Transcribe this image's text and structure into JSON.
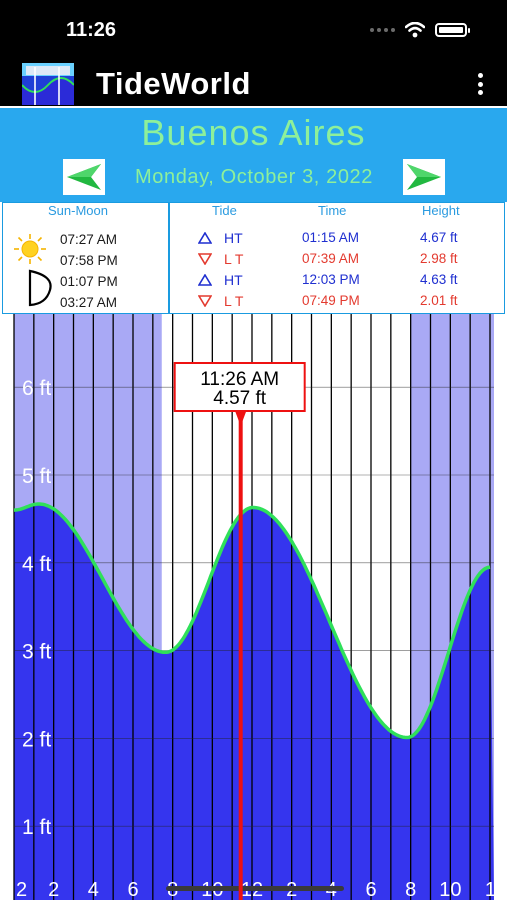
{
  "status_bar": {
    "time": "11:26"
  },
  "app": {
    "title": "TideWorld"
  },
  "location": {
    "city": "Buenos Aires",
    "date": "Monday, October 3, 2022"
  },
  "sun_moon": {
    "header": "Sun-Moon",
    "sunrise": "07:27 AM",
    "sunset": "07:58 PM",
    "moonrise": "01:07 PM",
    "moonset": "03:27 AM"
  },
  "tide_table": {
    "headers": {
      "tide": "Tide",
      "time": "Time",
      "height": "Height"
    },
    "rows": [
      {
        "type": "HT",
        "time": "01:15 AM",
        "height": "4.67 ft",
        "kind": "high"
      },
      {
        "type": "L T",
        "time": "07:39 AM",
        "height": "2.98 ft",
        "kind": "low"
      },
      {
        "type": "HT",
        "time": "12:03 PM",
        "height": "4.63 ft",
        "kind": "high"
      },
      {
        "type": "L T",
        "time": "07:49 PM",
        "height": "2.01 ft",
        "kind": "low"
      }
    ]
  },
  "cursor": {
    "time": "11:26 AM",
    "height": "4.57 ft",
    "hour": 11.43
  },
  "colors": {
    "header_bg": "#29a8ee",
    "accent_green": "#8ef09a",
    "water": "#3535ee",
    "night_sky": "#a9a9f5",
    "curve": "#2fe05a",
    "cursor": "#ee1111"
  },
  "chart_data": {
    "type": "area",
    "y_tick_labels": [
      "1 ft",
      "2 ft",
      "3 ft",
      "4 ft",
      "5 ft",
      "6 ft"
    ],
    "x_tick_labels": [
      "2",
      "2",
      "4",
      "6",
      "8",
      "10",
      "12",
      "2",
      "4",
      "6",
      "8",
      "10",
      "1"
    ],
    "ylim": [
      0,
      6.7
    ],
    "xlim": [
      0,
      24
    ],
    "grid": true,
    "night_before_hour": 7.45,
    "night_after_hour": 19.97,
    "series": [
      {
        "hour": 0,
        "ft": 4.6
      },
      {
        "hour": 1.25,
        "ft": 4.67
      },
      {
        "hour": 7.65,
        "ft": 2.98
      },
      {
        "hour": 12.05,
        "ft": 4.63
      },
      {
        "hour": 19.82,
        "ft": 2.01
      },
      {
        "hour": 24,
        "ft": 3.95
      }
    ]
  }
}
